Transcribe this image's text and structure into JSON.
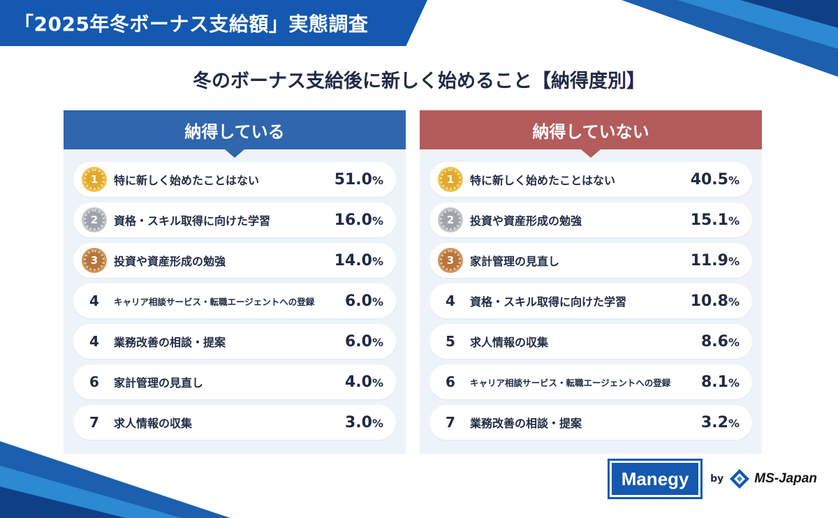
{
  "title": "「2025年冬ボーナス支給額」実態調査",
  "heading": "冬のボーナス支給後に新しく始めること【納得度別】",
  "colors": {
    "primary": "#1458b0",
    "satisfied": "#2f66ad",
    "unsatisfied": "#b45b5c",
    "gold": "#e3a92a",
    "silver": "#9ea3a9",
    "bronze": "#b8753a"
  },
  "satisfied": {
    "header": "納得している",
    "rows": [
      {
        "rank": "1",
        "medal": "gold",
        "label": "特に新しく始めたことはない",
        "value": "51.0",
        "unit": "%"
      },
      {
        "rank": "2",
        "medal": "silver",
        "label": "資格・スキル取得に向けた学習",
        "value": "16.0",
        "unit": "%"
      },
      {
        "rank": "3",
        "medal": "bronze",
        "label": "投資や資産形成の勉強",
        "value": "14.0",
        "unit": "%"
      },
      {
        "rank": "4",
        "label": "キャリア相談サービス・転職エージェントへの登録",
        "value": "6.0",
        "unit": "%"
      },
      {
        "rank": "4",
        "label": "業務改善の相談・提案",
        "value": "6.0",
        "unit": "%"
      },
      {
        "rank": "6",
        "label": "家計管理の見直し",
        "value": "4.0",
        "unit": "%"
      },
      {
        "rank": "7",
        "label": "求人情報の収集",
        "value": "3.0",
        "unit": "%"
      }
    ]
  },
  "unsatisfied": {
    "header": "納得していない",
    "rows": [
      {
        "rank": "1",
        "medal": "gold",
        "label": "特に新しく始めたことはない",
        "value": "40.5",
        "unit": "%"
      },
      {
        "rank": "2",
        "medal": "silver",
        "label": "投資や資産形成の勉強",
        "value": "15.1",
        "unit": "%"
      },
      {
        "rank": "3",
        "medal": "bronze",
        "label": "家計管理の見直し",
        "value": "11.9",
        "unit": "%"
      },
      {
        "rank": "4",
        "label": "資格・スキル取得に向けた学習",
        "value": "10.8",
        "unit": "%"
      },
      {
        "rank": "5",
        "label": "求人情報の収集",
        "value": "8.6",
        "unit": "%"
      },
      {
        "rank": "6",
        "label": "キャリア相談サービス・転職エージェントへの登録",
        "value": "8.1",
        "unit": "%"
      },
      {
        "rank": "7",
        "label": "業務改善の相談・提案",
        "value": "3.2",
        "unit": "%"
      }
    ]
  },
  "footer": {
    "brand": "Manegy",
    "by": "by",
    "company": "MS-Japan"
  }
}
